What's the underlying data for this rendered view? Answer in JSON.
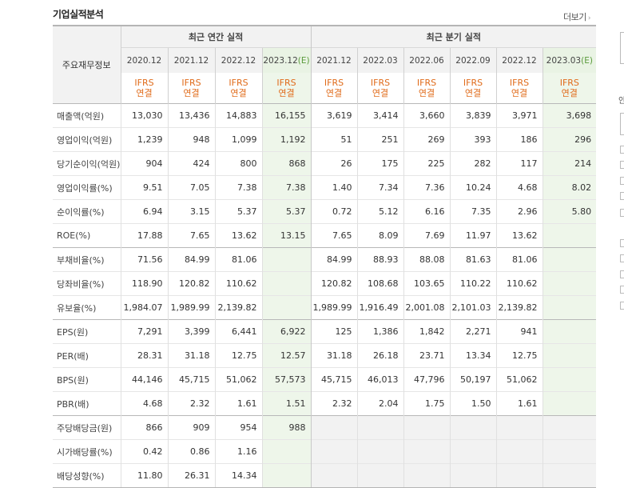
{
  "section_title": "기업실적분석",
  "more_link": "더보기",
  "header": {
    "label_col": "주요재무정보",
    "annual_group": "최근 연간 실적",
    "quarter_group": "최근 분기 실적",
    "annual_years": [
      {
        "period": "2020.12",
        "est": ""
      },
      {
        "period": "2021.12",
        "est": ""
      },
      {
        "period": "2022.12",
        "est": ""
      },
      {
        "period": "2023.12",
        "est": "(E)"
      }
    ],
    "quarter_years": [
      {
        "period": "2021.12",
        "est": ""
      },
      {
        "period": "2022.03",
        "est": ""
      },
      {
        "period": "2022.06",
        "est": ""
      },
      {
        "period": "2022.09",
        "est": ""
      },
      {
        "period": "2022.12",
        "est": ""
      },
      {
        "period": "2023.03",
        "est": "(E)"
      }
    ],
    "ifrs_line1": "IFRS",
    "ifrs_line2": "연결"
  },
  "rows": [
    {
      "label": "매출액(억원)",
      "annual": [
        "13,030",
        "13,436",
        "14,883",
        "16,155"
      ],
      "quarter": [
        "3,619",
        "3,414",
        "3,660",
        "3,839",
        "3,971",
        "3,698"
      ]
    },
    {
      "label": "영업이익(억원)",
      "annual": [
        "1,239",
        "948",
        "1,099",
        "1,192"
      ],
      "quarter": [
        "51",
        "251",
        "269",
        "393",
        "186",
        "296"
      ]
    },
    {
      "label": "당기순이익(억원)",
      "annual": [
        "904",
        "424",
        "800",
        "868"
      ],
      "quarter": [
        "26",
        "175",
        "225",
        "282",
        "117",
        "214"
      ]
    },
    {
      "label": "영업이익률(%)",
      "annual": [
        "9.51",
        "7.05",
        "7.38",
        "7.38"
      ],
      "quarter": [
        "1.40",
        "7.34",
        "7.36",
        "10.24",
        "4.68",
        "8.02"
      ]
    },
    {
      "label": "순이익률(%)",
      "annual": [
        "6.94",
        "3.15",
        "5.37",
        "5.37"
      ],
      "quarter": [
        "0.72",
        "5.12",
        "6.16",
        "7.35",
        "2.96",
        "5.80"
      ]
    },
    {
      "label": "ROE(%)",
      "annual": [
        "17.88",
        "7.65",
        "13.62",
        "13.15"
      ],
      "quarter": [
        "7.65",
        "8.09",
        "7.69",
        "11.97",
        "13.62",
        ""
      ]
    },
    {
      "label": "부채비율(%)",
      "annual": [
        "71.56",
        "84.99",
        "81.06",
        ""
      ],
      "quarter": [
        "84.99",
        "88.93",
        "88.08",
        "81.63",
        "81.06",
        ""
      ]
    },
    {
      "label": "당좌비율(%)",
      "annual": [
        "118.90",
        "120.82",
        "110.62",
        ""
      ],
      "quarter": [
        "120.82",
        "108.68",
        "103.65",
        "110.22",
        "110.62",
        ""
      ]
    },
    {
      "label": "유보율(%)",
      "annual": [
        "1,984.07",
        "1,989.99",
        "2,139.82",
        ""
      ],
      "quarter": [
        "1,989.99",
        "1,916.49",
        "2,001.08",
        "2,101.03",
        "2,139.82",
        ""
      ]
    },
    {
      "label": "EPS(원)",
      "annual": [
        "7,291",
        "3,399",
        "6,441",
        "6,922"
      ],
      "quarter": [
        "125",
        "1,386",
        "1,842",
        "2,271",
        "941",
        ""
      ]
    },
    {
      "label": "PER(배)",
      "annual": [
        "28.31",
        "31.18",
        "12.75",
        "12.57"
      ],
      "quarter": [
        "31.18",
        "26.18",
        "23.71",
        "13.34",
        "12.75",
        ""
      ]
    },
    {
      "label": "BPS(원)",
      "annual": [
        "44,146",
        "45,715",
        "51,062",
        "57,573"
      ],
      "quarter": [
        "45,715",
        "46,013",
        "47,796",
        "50,197",
        "51,062",
        ""
      ]
    },
    {
      "label": "PBR(배)",
      "annual": [
        "4.68",
        "2.32",
        "1.61",
        "1.51"
      ],
      "quarter": [
        "2.32",
        "2.04",
        "1.75",
        "1.50",
        "1.61",
        ""
      ]
    },
    {
      "label": "주당배당금(원)",
      "annual": [
        "866",
        "909",
        "954",
        "988"
      ],
      "quarter": [
        "",
        "",
        "",
        "",
        "",
        ""
      ]
    },
    {
      "label": "시가배당률(%)",
      "annual": [
        "0.42",
        "0.86",
        "1.16",
        ""
      ],
      "quarter": [
        "",
        "",
        "",
        "",
        "",
        ""
      ]
    },
    {
      "label": "배당성향(%)",
      "annual": [
        "11.80",
        "26.31",
        "14.34",
        ""
      ],
      "quarter": [
        "",
        "",
        "",
        "",
        "",
        ""
      ]
    }
  ],
  "right_edge_text": [
    "안"
  ],
  "colors": {
    "ifrs": "#e06b1a",
    "estimate_bg": "#eef6ea",
    "estimate_text": "#5a9b3b",
    "header_bg": "#f2f2f2"
  }
}
